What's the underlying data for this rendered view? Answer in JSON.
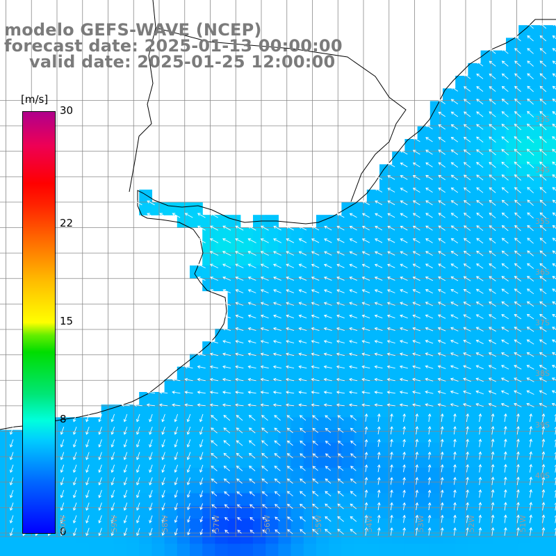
{
  "title": {
    "line1": "modelo GEFS-WAVE (NCEP)",
    "line2": "forecast date: 2025-01-13 00:00:00",
    "line3": "valid date: 2025-01-25 12:00:00"
  },
  "colorbar": {
    "unit": "[m/s]",
    "ticks": [
      "30",
      "22",
      "15",
      "8",
      "0"
    ],
    "tick_values": [
      30,
      22,
      15,
      8,
      0
    ],
    "range": [
      0,
      30
    ],
    "colors": [
      "#0000ff",
      "#00ccff",
      "#00ffdd",
      "#00dd00",
      "#ffff00",
      "#ff7700",
      "#ff0000",
      "#b0008c"
    ]
  },
  "map": {
    "lat_labels": [
      "33S",
      "34S",
      "35S",
      "36S",
      "37S",
      "38S",
      "39S",
      "40S",
      "41S"
    ],
    "lat_values": [
      -33,
      -34,
      -35,
      -36,
      -37,
      -38,
      -39,
      -40,
      -41
    ],
    "lon_labels": [
      "61W",
      "60W",
      "59W",
      "58W",
      "57W",
      "56W",
      "55W",
      "54W",
      "53W",
      "52W",
      "51W",
      "50W"
    ],
    "lon_values": [
      -61,
      -60,
      -59,
      -58,
      -57,
      -56,
      -55,
      -54,
      -53,
      -52,
      -51,
      -50
    ],
    "field": "wind speed and direction",
    "colors": {
      "land": "#ffffff",
      "grid": "#888888",
      "coast": "#000000",
      "arrow": "#ffffff",
      "title": "#7b7b7b",
      "label": "#9a9a9a"
    }
  }
}
